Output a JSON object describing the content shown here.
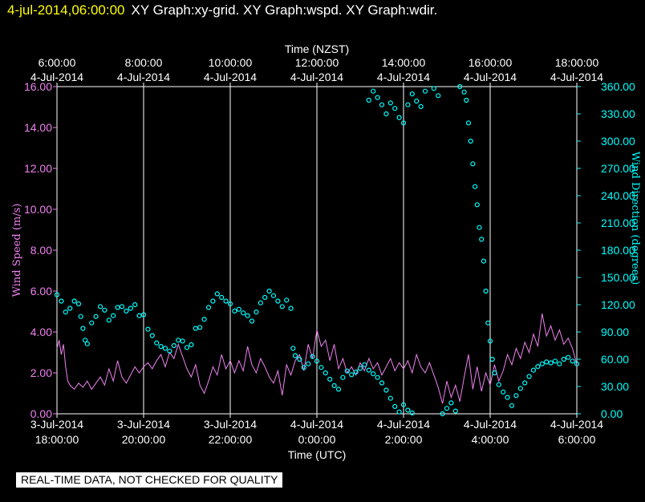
{
  "header": {
    "timestamp": "4-jul-2014,06:00:00",
    "titles": "XY Graph:xy-grid.  XY Graph:wspd.  XY Graph:wdir."
  },
  "notice": "REAL-TIME DATA, NOT CHECKED FOR QUALITY",
  "chart_data": {
    "type": "scatter",
    "colors": {
      "wind_speed": "#ee82ee",
      "wind_direction": "#00ffff",
      "grid": "#ffffff",
      "background": "#000000"
    },
    "x_top": {
      "label": "Time (NZST)",
      "ticks": [
        {
          "x": 0,
          "time": "6:00:00",
          "date": "4-Jul-2014"
        },
        {
          "x": 2,
          "time": "8:00:00",
          "date": "4-Jul-2014"
        },
        {
          "x": 4,
          "time": "10:00:00",
          "date": "4-Jul-2014"
        },
        {
          "x": 6,
          "time": "12:00:00",
          "date": "4-Jul-2014"
        },
        {
          "x": 8,
          "time": "14:00:00",
          "date": "4-Jul-2014"
        },
        {
          "x": 10,
          "time": "16:00:00",
          "date": "4-Jul-2014"
        },
        {
          "x": 12,
          "time": "18:00:00",
          "date": "4-Jul-2014"
        }
      ]
    },
    "x_bottom": {
      "label": "Time (UTC)",
      "ticks": [
        {
          "x": 0,
          "date": "3-Jul-2014",
          "time": "18:00:00"
        },
        {
          "x": 2,
          "date": "3-Jul-2014",
          "time": "20:00:00"
        },
        {
          "x": 4,
          "date": "3-Jul-2014",
          "time": "22:00:00"
        },
        {
          "x": 6,
          "date": "4-Jul-2014",
          "time": "0:00:00"
        },
        {
          "x": 8,
          "date": "4-Jul-2014",
          "time": "2:00:00"
        },
        {
          "x": 10,
          "date": "4-Jul-2014",
          "time": "4:00:00"
        },
        {
          "x": 12,
          "date": "4-Jul-2014",
          "time": "6:00:00"
        }
      ]
    },
    "xlim": [
      0,
      12
    ],
    "y_left": {
      "label": "Wind Speed (m/s)",
      "ylim": [
        0,
        16
      ],
      "ticks": [
        {
          "v": 0,
          "label": "0.00"
        },
        {
          "v": 2,
          "label": "2.00"
        },
        {
          "v": 4,
          "label": "4.00"
        },
        {
          "v": 6,
          "label": "6.00"
        },
        {
          "v": 8,
          "label": "8.00"
        },
        {
          "v": 10,
          "label": "10.00"
        },
        {
          "v": 12,
          "label": "12.00"
        },
        {
          "v": 14,
          "label": "14.00"
        },
        {
          "v": 16,
          "label": "16.00"
        }
      ]
    },
    "y_right": {
      "label": "Wind Direction (degrees)",
      "ylim": [
        0,
        360
      ],
      "ticks": [
        {
          "v": 0,
          "label": "0.00"
        },
        {
          "v": 30,
          "label": "30.00"
        },
        {
          "v": 60,
          "label": "60.00"
        },
        {
          "v": 90,
          "label": "90.00"
        },
        {
          "v": 120,
          "label": "120.00"
        },
        {
          "v": 150,
          "label": "150.00"
        },
        {
          "v": 180,
          "label": "180.00"
        },
        {
          "v": 210,
          "label": "210.00"
        },
        {
          "v": 240,
          "label": "240.00"
        },
        {
          "v": 270,
          "label": "270.00"
        },
        {
          "v": 300,
          "label": "300.00"
        },
        {
          "v": 330,
          "label": "330.00"
        },
        {
          "v": 360,
          "label": "360.00"
        }
      ]
    },
    "grid": "vertical lines at each 2-hour tick",
    "series": [
      {
        "name": "Wind Speed",
        "style": "line",
        "axis": "left",
        "color": "#ee82ee",
        "points": [
          [
            0.0,
            3.2
          ],
          [
            0.05,
            3.6
          ],
          [
            0.1,
            2.9
          ],
          [
            0.15,
            3.4
          ],
          [
            0.2,
            2.3
          ],
          [
            0.25,
            1.6
          ],
          [
            0.3,
            1.4
          ],
          [
            0.4,
            1.2
          ],
          [
            0.5,
            1.5
          ],
          [
            0.6,
            1.3
          ],
          [
            0.7,
            1.6
          ],
          [
            0.8,
            1.2
          ],
          [
            0.9,
            1.5
          ],
          [
            1.0,
            1.8
          ],
          [
            1.1,
            1.4
          ],
          [
            1.2,
            2.2
          ],
          [
            1.3,
            1.6
          ],
          [
            1.4,
            2.6
          ],
          [
            1.5,
            1.8
          ],
          [
            1.6,
            1.5
          ],
          [
            1.7,
            1.9
          ],
          [
            1.8,
            2.3
          ],
          [
            1.9,
            2.0
          ],
          [
            2.0,
            2.3
          ],
          [
            2.1,
            2.5
          ],
          [
            2.2,
            2.2
          ],
          [
            2.3,
            2.6
          ],
          [
            2.4,
            2.9
          ],
          [
            2.5,
            2.3
          ],
          [
            2.6,
            3.0
          ],
          [
            2.7,
            2.7
          ],
          [
            2.8,
            3.4
          ],
          [
            2.9,
            2.8
          ],
          [
            3.0,
            2.2
          ],
          [
            3.1,
            1.8
          ],
          [
            3.2,
            2.4
          ],
          [
            3.3,
            1.4
          ],
          [
            3.4,
            1.0
          ],
          [
            3.5,
            1.6
          ],
          [
            3.6,
            2.3
          ],
          [
            3.7,
            1.9
          ],
          [
            3.8,
            2.9
          ],
          [
            3.9,
            2.2
          ],
          [
            4.0,
            2.6
          ],
          [
            4.1,
            2.0
          ],
          [
            4.2,
            2.6
          ],
          [
            4.3,
            2.1
          ],
          [
            4.4,
            3.3
          ],
          [
            4.5,
            2.4
          ],
          [
            4.6,
            2.0
          ],
          [
            4.7,
            2.7
          ],
          [
            4.8,
            2.3
          ],
          [
            4.9,
            1.8
          ],
          [
            5.0,
            1.5
          ],
          [
            5.1,
            2.1
          ],
          [
            5.2,
            0.9
          ],
          [
            5.3,
            2.4
          ],
          [
            5.4,
            1.9
          ],
          [
            5.5,
            2.6
          ],
          [
            5.6,
            2.9
          ],
          [
            5.7,
            2.1
          ],
          [
            5.8,
            3.4
          ],
          [
            5.9,
            2.7
          ],
          [
            6.0,
            4.1
          ],
          [
            6.1,
            3.3
          ],
          [
            6.2,
            3.6
          ],
          [
            6.3,
            2.6
          ],
          [
            6.4,
            3.4
          ],
          [
            6.5,
            2.2
          ],
          [
            6.6,
            2.7
          ],
          [
            6.7,
            2.0
          ],
          [
            6.8,
            2.3
          ],
          [
            6.9,
            1.9
          ],
          [
            7.0,
            2.5
          ],
          [
            7.1,
            2.1
          ],
          [
            7.2,
            2.7
          ],
          [
            7.3,
            2.2
          ],
          [
            7.4,
            2.5
          ],
          [
            7.5,
            1.9
          ],
          [
            7.6,
            2.3
          ],
          [
            7.7,
            2.7
          ],
          [
            7.8,
            2.1
          ],
          [
            7.9,
            2.5
          ],
          [
            8.0,
            2.2
          ],
          [
            8.1,
            2.6
          ],
          [
            8.2,
            2.0
          ],
          [
            8.3,
            2.9
          ],
          [
            8.4,
            2.3
          ],
          [
            8.5,
            2.0
          ],
          [
            8.6,
            2.5
          ],
          [
            8.7,
            1.9
          ],
          [
            8.8,
            1.3
          ],
          [
            8.9,
            0.5
          ],
          [
            9.0,
            1.6
          ],
          [
            9.1,
            0.8
          ],
          [
            9.2,
            1.4
          ],
          [
            9.3,
            0.6
          ],
          [
            9.4,
            1.8
          ],
          [
            9.5,
            2.9
          ],
          [
            9.6,
            1.2
          ],
          [
            9.7,
            2.3
          ],
          [
            9.8,
            1.1
          ],
          [
            9.9,
            2.0
          ],
          [
            10.0,
            1.4
          ],
          [
            10.1,
            2.4
          ],
          [
            10.2,
            1.6
          ],
          [
            10.3,
            2.1
          ],
          [
            10.4,
            2.9
          ],
          [
            10.5,
            2.4
          ],
          [
            10.6,
            3.2
          ],
          [
            10.7,
            2.7
          ],
          [
            10.8,
            3.5
          ],
          [
            10.9,
            3.0
          ],
          [
            11.0,
            3.9
          ],
          [
            11.1,
            3.3
          ],
          [
            11.2,
            4.9
          ],
          [
            11.3,
            3.8
          ],
          [
            11.4,
            4.3
          ],
          [
            11.5,
            3.6
          ],
          [
            11.6,
            4.1
          ],
          [
            11.7,
            3.4
          ],
          [
            11.8,
            3.7
          ],
          [
            11.9,
            3.2
          ],
          [
            12.0,
            2.4
          ]
        ]
      },
      {
        "name": "Wind Direction",
        "style": "markers",
        "axis": "right",
        "color": "#00ffff",
        "points": [
          [
            0.0,
            131
          ],
          [
            0.1,
            124
          ],
          [
            0.2,
            112
          ],
          [
            0.3,
            116
          ],
          [
            0.4,
            124
          ],
          [
            0.5,
            121
          ],
          [
            0.55,
            107
          ],
          [
            0.6,
            94
          ],
          [
            0.65,
            81
          ],
          [
            0.7,
            77
          ],
          [
            0.8,
            100
          ],
          [
            0.9,
            107
          ],
          [
            1.0,
            118
          ],
          [
            1.1,
            114
          ],
          [
            1.2,
            103
          ],
          [
            1.3,
            108
          ],
          [
            1.4,
            117
          ],
          [
            1.5,
            118
          ],
          [
            1.6,
            113
          ],
          [
            1.7,
            116
          ],
          [
            1.8,
            120
          ],
          [
            1.9,
            108
          ],
          [
            2.0,
            109
          ],
          [
            2.1,
            93
          ],
          [
            2.2,
            86
          ],
          [
            2.3,
            78
          ],
          [
            2.4,
            74
          ],
          [
            2.5,
            72
          ],
          [
            2.6,
            69
          ],
          [
            2.7,
            75
          ],
          [
            2.8,
            81
          ],
          [
            2.9,
            80
          ],
          [
            3.0,
            73
          ],
          [
            3.1,
            76
          ],
          [
            3.2,
            94
          ],
          [
            3.3,
            95
          ],
          [
            3.4,
            104
          ],
          [
            3.5,
            117
          ],
          [
            3.6,
            124
          ],
          [
            3.7,
            132
          ],
          [
            3.8,
            128
          ],
          [
            3.9,
            124
          ],
          [
            4.0,
            121
          ],
          [
            4.1,
            113
          ],
          [
            4.2,
            115
          ],
          [
            4.3,
            111
          ],
          [
            4.4,
            108
          ],
          [
            4.5,
            102
          ],
          [
            4.6,
            112
          ],
          [
            4.7,
            122
          ],
          [
            4.8,
            128
          ],
          [
            4.9,
            135
          ],
          [
            5.0,
            130
          ],
          [
            5.1,
            124
          ],
          [
            5.2,
            118
          ],
          [
            5.3,
            125
          ],
          [
            5.4,
            116
          ],
          [
            5.45,
            72
          ],
          [
            5.5,
            64
          ],
          [
            5.6,
            60
          ],
          [
            5.7,
            51
          ],
          [
            5.8,
            55
          ],
          [
            5.9,
            63
          ],
          [
            6.0,
            58
          ],
          [
            6.1,
            51
          ],
          [
            6.2,
            45
          ],
          [
            6.3,
            38
          ],
          [
            6.4,
            31
          ],
          [
            6.5,
            27
          ],
          [
            6.6,
            40
          ],
          [
            6.7,
            47
          ],
          [
            6.8,
            43
          ],
          [
            6.9,
            46
          ],
          [
            7.0,
            50
          ],
          [
            7.1,
            54
          ],
          [
            7.2,
            48
          ],
          [
            7.3,
            44
          ],
          [
            7.4,
            40
          ],
          [
            7.5,
            34
          ],
          [
            7.6,
            26
          ],
          [
            7.7,
            17
          ],
          [
            7.8,
            8
          ],
          [
            7.9,
            2
          ],
          [
            8.0,
            10
          ],
          [
            8.1,
            4
          ],
          [
            8.2,
            1
          ],
          [
            7.2,
            345
          ],
          [
            7.3,
            355
          ],
          [
            7.4,
            348
          ],
          [
            7.5,
            340
          ],
          [
            7.6,
            330
          ],
          [
            7.7,
            342
          ],
          [
            7.8,
            336
          ],
          [
            7.9,
            326
          ],
          [
            8.0,
            320
          ],
          [
            8.1,
            340
          ],
          [
            8.2,
            352
          ],
          [
            8.3,
            344
          ],
          [
            8.4,
            338
          ],
          [
            8.5,
            355
          ],
          [
            8.7,
            358
          ],
          [
            8.8,
            350
          ],
          [
            8.9,
            0
          ],
          [
            9.0,
            6
          ],
          [
            9.1,
            12
          ],
          [
            9.2,
            3
          ],
          [
            9.3,
            360
          ],
          [
            9.4,
            354
          ],
          [
            9.45,
            345
          ],
          [
            9.5,
            320
          ],
          [
            9.55,
            300
          ],
          [
            9.6,
            275
          ],
          [
            9.65,
            250
          ],
          [
            9.7,
            230
          ],
          [
            9.75,
            205
          ],
          [
            9.8,
            192
          ],
          [
            9.85,
            168
          ],
          [
            9.9,
            135
          ],
          [
            9.95,
            100
          ],
          [
            10.0,
            80
          ],
          [
            10.05,
            60
          ],
          [
            10.1,
            45
          ],
          [
            10.2,
            32
          ],
          [
            10.3,
            24
          ],
          [
            10.4,
            18
          ],
          [
            10.5,
            9
          ],
          [
            10.6,
            20
          ],
          [
            10.7,
            28
          ],
          [
            10.8,
            34
          ],
          [
            10.9,
            41
          ],
          [
            11.0,
            48
          ],
          [
            11.1,
            52
          ],
          [
            11.2,
            55
          ],
          [
            11.3,
            57
          ],
          [
            11.4,
            56
          ],
          [
            11.5,
            58
          ],
          [
            11.6,
            55
          ],
          [
            11.7,
            60
          ],
          [
            11.8,
            62
          ],
          [
            11.9,
            58
          ],
          [
            12.0,
            55
          ]
        ]
      }
    ]
  }
}
